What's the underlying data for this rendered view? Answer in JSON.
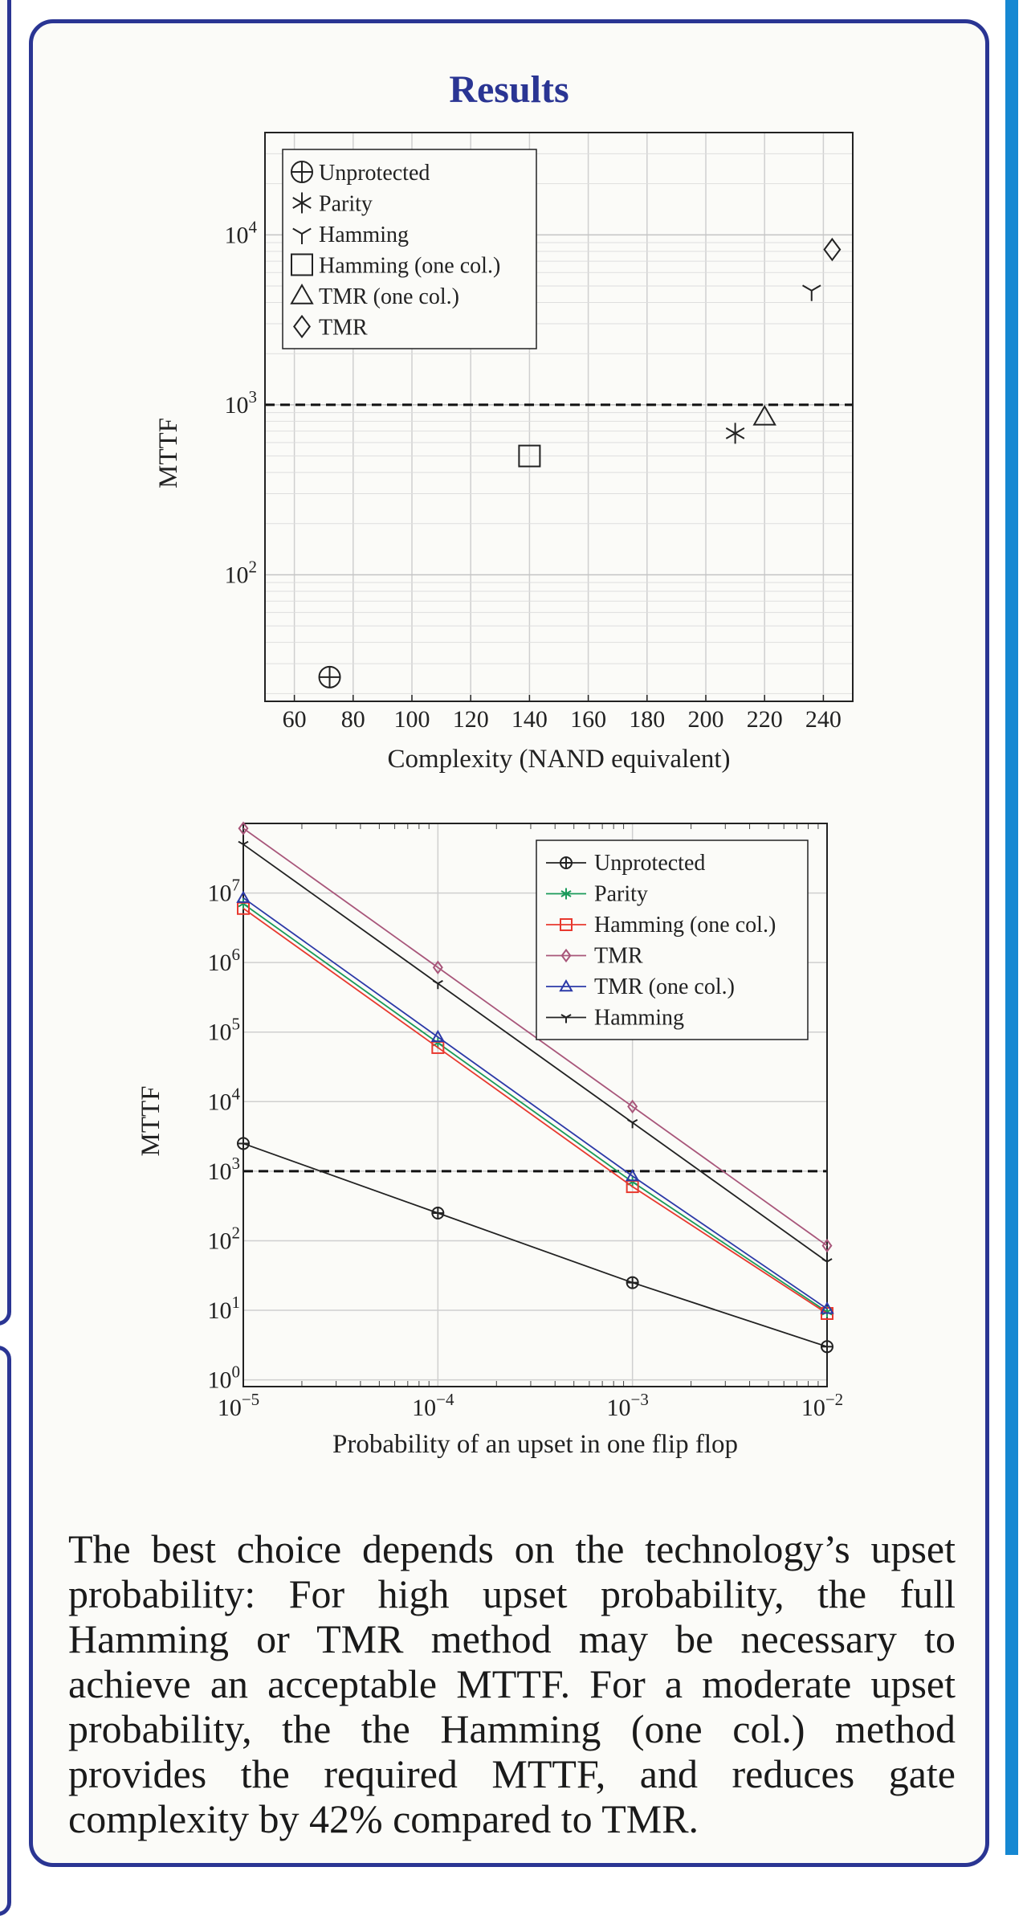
{
  "panel": {
    "title": "Results"
  },
  "conclusion": "The best choice depends on the technology’s upset probability: For high upset probability, the full Hamming or TMR method may be necessary to achieve an acceptable MTTF. For a moderate upset probability, the the Hamming (one col.) method provides the required MTTF, and reduces gate complexity by 42% compared to TMR.",
  "chart_data": [
    {
      "type": "scatter",
      "xlabel": "Complexity (NAND equivalent)",
      "ylabel": "MTTF",
      "xlim": [
        50,
        250
      ],
      "ylim": [
        18,
        40000
      ],
      "yscale": "log",
      "grid": true,
      "legend_position": "top-left",
      "x_ticks": [
        60,
        80,
        100,
        120,
        140,
        160,
        180,
        200,
        220,
        240
      ],
      "y_ticks": [
        {
          "base": "10",
          "exp": "2",
          "value": 100
        },
        {
          "base": "10",
          "exp": "3",
          "value": 1000
        },
        {
          "base": "10",
          "exp": "4",
          "value": 10000
        }
      ],
      "reference_line": {
        "y": 1000,
        "style": "dashed"
      },
      "series": [
        {
          "name": "Unprotected",
          "marker": "circle-plus",
          "x": 72,
          "y": 25
        },
        {
          "name": "Parity",
          "marker": "asterisk",
          "x": 210,
          "y": 680
        },
        {
          "name": "Hamming",
          "marker": "tri-star",
          "x": 236,
          "y": 4700
        },
        {
          "name": "Hamming (one col.)",
          "marker": "square",
          "x": 140,
          "y": 500
        },
        {
          "name": "TMR (one col.)",
          "marker": "triangle",
          "x": 220,
          "y": 850
        },
        {
          "name": "TMR",
          "marker": "diamond",
          "x": 243,
          "y": 8200
        }
      ]
    },
    {
      "type": "line",
      "xlabel": "Probability of an upset in one flip flop",
      "ylabel": "MTTF",
      "xscale": "log",
      "yscale": "log",
      "xlim": [
        1e-05,
        0.01
      ],
      "ylim": [
        0.8,
        100000000
      ],
      "grid": true,
      "legend_position": "top-right",
      "x_ticks": [
        {
          "base": "10",
          "exp": "−5",
          "value": 1e-05
        },
        {
          "base": "10",
          "exp": "−4",
          "value": 0.0001
        },
        {
          "base": "10",
          "exp": "−3",
          "value": 0.001
        },
        {
          "base": "10",
          "exp": "−2",
          "value": 0.01
        }
      ],
      "y_ticks": [
        {
          "base": "10",
          "exp": "0",
          "value": 1
        },
        {
          "base": "10",
          "exp": "1",
          "value": 10
        },
        {
          "base": "10",
          "exp": "2",
          "value": 100
        },
        {
          "base": "10",
          "exp": "3",
          "value": 1000
        },
        {
          "base": "10",
          "exp": "4",
          "value": 10000
        },
        {
          "base": "10",
          "exp": "5",
          "value": 100000
        },
        {
          "base": "10",
          "exp": "6",
          "value": 1000000
        },
        {
          "base": "10",
          "exp": "7",
          "value": 10000000
        }
      ],
      "reference_line": {
        "y": 1000,
        "style": "dashed"
      },
      "x": [
        1e-05,
        0.0001,
        0.001,
        0.01
      ],
      "series": [
        {
          "name": "Unprotected",
          "color": "#222222",
          "marker": "circle-plus",
          "values": [
            2500,
            250,
            25,
            3
          ]
        },
        {
          "name": "Parity",
          "color": "#1a9a5a",
          "marker": "asterisk",
          "values": [
            7000000,
            70000,
            700,
            9.5
          ]
        },
        {
          "name": "Hamming (one col.)",
          "color": "#e8392f",
          "marker": "square",
          "values": [
            6000000,
            60000,
            600,
            9
          ]
        },
        {
          "name": "TMR",
          "color": "#a8567a",
          "marker": "diamond",
          "values": [
            85000000,
            850000,
            8500,
            85
          ]
        },
        {
          "name": "TMR (one col.)",
          "color": "#2c3aa8",
          "marker": "triangle",
          "values": [
            8500000,
            85000,
            850,
            10.5
          ]
        },
        {
          "name": "Hamming",
          "color": "#222222",
          "marker": "tri-star",
          "values": [
            50000000,
            500000,
            5000,
            50
          ]
        }
      ]
    }
  ]
}
